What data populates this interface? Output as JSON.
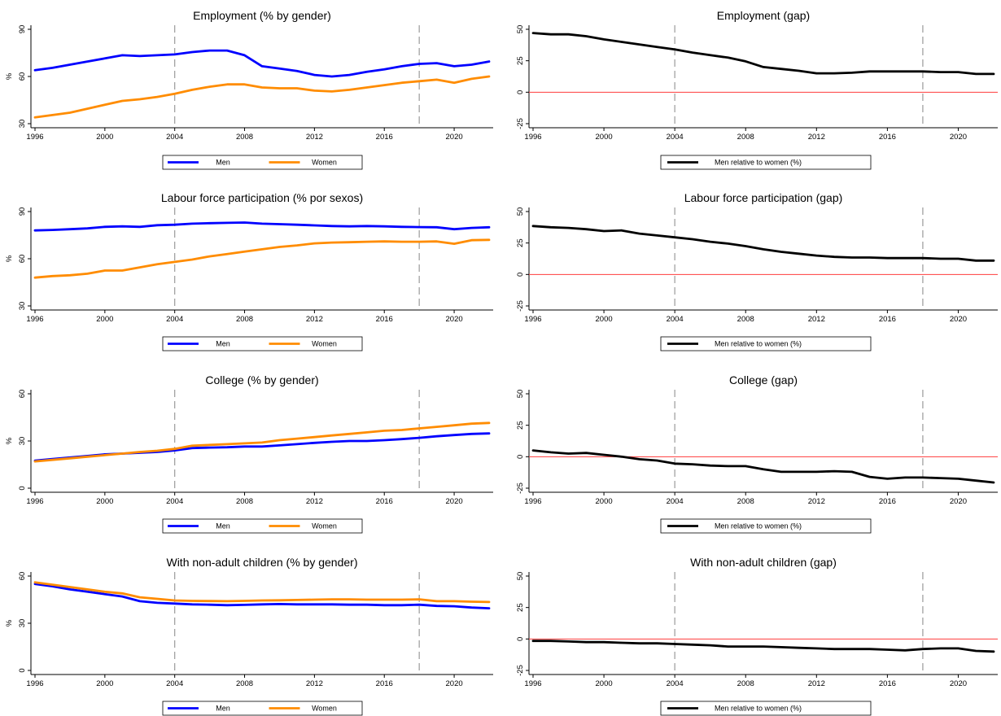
{
  "colors": {
    "men": "#0000ff",
    "women": "#ff8c00",
    "gap": "#000000",
    "zero_line": "#ff3b3b",
    "ref_line": "#9a9a9a",
    "axis": "#000000",
    "background": "#ffffff"
  },
  "chart_data": [
    {
      "type": "line",
      "title": "Employment (% by gender)",
      "ylabel": "%",
      "ylim": [
        30,
        90
      ],
      "yticks": [
        30,
        60,
        90
      ],
      "xlim": [
        1996,
        2022
      ],
      "xticks": [
        1996,
        2000,
        2004,
        2008,
        2012,
        2016,
        2020
      ],
      "vlines": [
        2004,
        2018
      ],
      "grid": false,
      "legend_position": "bottom",
      "x": [
        1996,
        1997,
        1998,
        1999,
        2000,
        2001,
        2002,
        2003,
        2004,
        2005,
        2006,
        2007,
        2008,
        2009,
        2010,
        2011,
        2012,
        2013,
        2014,
        2015,
        2016,
        2017,
        2018,
        2019,
        2020,
        2021,
        2022
      ],
      "series": [
        {
          "name": "Men",
          "color_key": "men",
          "values": [
            64,
            65.5,
            67.5,
            69.5,
            71.5,
            73.5,
            73,
            73.5,
            74,
            75.5,
            76.5,
            76.5,
            73.5,
            66.5,
            65,
            63.5,
            61,
            60,
            61,
            63,
            64.5,
            66.5,
            68,
            68.5,
            66.5,
            67.5,
            69.5
          ]
        },
        {
          "name": "Women",
          "color_key": "women",
          "values": [
            34,
            35.5,
            37,
            39.5,
            42,
            44.5,
            45.5,
            47,
            49,
            51.5,
            53.5,
            55,
            55,
            53,
            52.5,
            52.5,
            51,
            50.5,
            51.5,
            53,
            54.5,
            56,
            57,
            58,
            56,
            58.5,
            60
          ]
        }
      ]
    },
    {
      "type": "line",
      "title": "Employment (gap)",
      "ylabel": "",
      "ylim": [
        -25,
        50
      ],
      "yticks": [
        -25,
        0,
        25,
        50
      ],
      "xlim": [
        1996,
        2022
      ],
      "xticks": [
        1996,
        2000,
        2004,
        2008,
        2012,
        2016,
        2020
      ],
      "vlines": [
        2004,
        2018
      ],
      "hline": 0,
      "grid": false,
      "legend_position": "bottom",
      "x": [
        1996,
        1997,
        1998,
        1999,
        2000,
        2001,
        2002,
        2003,
        2004,
        2005,
        2006,
        2007,
        2008,
        2009,
        2010,
        2011,
        2012,
        2013,
        2014,
        2015,
        2016,
        2017,
        2018,
        2019,
        2020,
        2021,
        2022
      ],
      "series": [
        {
          "name": "Men relative to women (%)",
          "color_key": "gap",
          "values": [
            47,
            46,
            46,
            44.5,
            42,
            40,
            38,
            36,
            34,
            31.5,
            29.5,
            27.5,
            24.5,
            20,
            18.5,
            17,
            15,
            15,
            15.5,
            16.5,
            16.5,
            16.5,
            16.5,
            16,
            16,
            14.5,
            14.5
          ]
        }
      ]
    },
    {
      "type": "line",
      "title": "Labour force participation (% por sexos)",
      "ylabel": "%",
      "ylim": [
        30,
        90
      ],
      "yticks": [
        30,
        60,
        90
      ],
      "xlim": [
        1996,
        2022
      ],
      "xticks": [
        1996,
        2000,
        2004,
        2008,
        2012,
        2016,
        2020
      ],
      "vlines": [
        2004,
        2018
      ],
      "grid": false,
      "legend_position": "bottom",
      "x": [
        1996,
        1997,
        1998,
        1999,
        2000,
        2001,
        2002,
        2003,
        2004,
        2005,
        2006,
        2007,
        2008,
        2009,
        2010,
        2011,
        2012,
        2013,
        2014,
        2015,
        2016,
        2017,
        2018,
        2019,
        2020,
        2021,
        2022
      ],
      "series": [
        {
          "name": "Men",
          "color_key": "men",
          "values": [
            78,
            78.3,
            78.8,
            79.3,
            80.3,
            80.6,
            80.3,
            81.3,
            81.6,
            82.3,
            82.6,
            82.8,
            83,
            82.3,
            82,
            81.6,
            81.2,
            80.8,
            80.6,
            80.8,
            80.6,
            80.3,
            80.1,
            80,
            78.8,
            79.6,
            80
          ]
        },
        {
          "name": "Women",
          "color_key": "women",
          "values": [
            48,
            49,
            49.5,
            50.5,
            52.5,
            52.5,
            54.5,
            56.5,
            58,
            59.5,
            61.5,
            63,
            64.5,
            66,
            67.5,
            68.5,
            69.8,
            70.3,
            70.5,
            70.8,
            71,
            70.8,
            70.8,
            71,
            69.5,
            71.8,
            72
          ]
        }
      ]
    },
    {
      "type": "line",
      "title": "Labour force participation (gap)",
      "ylabel": "",
      "ylim": [
        -25,
        50
      ],
      "yticks": [
        -25,
        0,
        25,
        50
      ],
      "xlim": [
        1996,
        2022
      ],
      "xticks": [
        1996,
        2000,
        2004,
        2008,
        2012,
        2016,
        2020
      ],
      "vlines": [
        2004,
        2018
      ],
      "hline": 0,
      "grid": false,
      "legend_position": "bottom",
      "x": [
        1996,
        1997,
        1998,
        1999,
        2000,
        2001,
        2002,
        2003,
        2004,
        2005,
        2006,
        2007,
        2008,
        2009,
        2010,
        2011,
        2012,
        2013,
        2014,
        2015,
        2016,
        2017,
        2018,
        2019,
        2020,
        2021,
        2022
      ],
      "series": [
        {
          "name": "Men relative to women (%)",
          "color_key": "gap",
          "values": [
            38.5,
            37.5,
            37,
            36,
            34.5,
            35,
            32.5,
            31,
            29.5,
            28,
            26,
            24.5,
            22.5,
            20,
            18,
            16.5,
            15,
            14,
            13.5,
            13.5,
            13,
            13,
            13,
            12.5,
            12.5,
            11,
            11
          ]
        }
      ]
    },
    {
      "type": "line",
      "title": "College (% by gender)",
      "ylabel": "%",
      "ylim": [
        0,
        60
      ],
      "yticks": [
        0,
        30,
        60
      ],
      "xlim": [
        1996,
        2022
      ],
      "xticks": [
        1996,
        2000,
        2004,
        2008,
        2012,
        2016,
        2020
      ],
      "vlines": [
        2004,
        2018
      ],
      "grid": false,
      "legend_position": "bottom",
      "x": [
        1996,
        1997,
        1998,
        1999,
        2000,
        2001,
        2002,
        2003,
        2004,
        2005,
        2006,
        2007,
        2008,
        2009,
        2010,
        2011,
        2012,
        2013,
        2014,
        2015,
        2016,
        2017,
        2018,
        2019,
        2020,
        2021,
        2022
      ],
      "series": [
        {
          "name": "Men",
          "color_key": "men",
          "values": [
            17.5,
            18.5,
            19.5,
            20.5,
            21.5,
            22,
            22.5,
            23,
            24,
            25.5,
            25.8,
            26,
            26.5,
            26.5,
            27.2,
            28,
            28.8,
            29.5,
            30,
            30,
            30.5,
            31.2,
            32,
            33,
            33.8,
            34.5,
            34.8
          ]
        },
        {
          "name": "Women",
          "color_key": "women",
          "values": [
            17,
            18,
            19,
            20,
            21,
            22,
            23,
            23.8,
            25,
            27,
            27.5,
            28,
            28.5,
            29,
            30.5,
            31.5,
            32.5,
            33.5,
            34.5,
            35.5,
            36.5,
            37,
            38,
            39,
            40,
            41,
            41.5
          ]
        }
      ]
    },
    {
      "type": "line",
      "title": "College (gap)",
      "ylabel": "",
      "ylim": [
        -25,
        50
      ],
      "yticks": [
        -25,
        0,
        25,
        50
      ],
      "xlim": [
        1996,
        2022
      ],
      "xticks": [
        1996,
        2000,
        2004,
        2008,
        2012,
        2016,
        2020
      ],
      "vlines": [
        2004,
        2018
      ],
      "hline": 0,
      "grid": false,
      "legend_position": "bottom",
      "x": [
        1996,
        1997,
        1998,
        1999,
        2000,
        2001,
        2002,
        2003,
        2004,
        2005,
        2006,
        2007,
        2008,
        2009,
        2010,
        2011,
        2012,
        2013,
        2014,
        2015,
        2016,
        2017,
        2018,
        2019,
        2020,
        2021,
        2022
      ],
      "series": [
        {
          "name": "Men relative to women (%)",
          "color_key": "gap",
          "values": [
            5,
            3.5,
            2.5,
            3,
            1.5,
            0,
            -2,
            -3,
            -5.5,
            -6,
            -7,
            -7.5,
            -7.5,
            -10,
            -12,
            -12,
            -12,
            -11.5,
            -12,
            -16,
            -17.5,
            -16.5,
            -16.5,
            -17,
            -17.5,
            -19,
            -20.5
          ]
        }
      ]
    },
    {
      "type": "line",
      "title": "With non-adult children (% by gender)",
      "ylabel": "%",
      "ylim": [
        0,
        60
      ],
      "yticks": [
        0,
        30,
        60
      ],
      "xlim": [
        1996,
        2022
      ],
      "xticks": [
        1996,
        2000,
        2004,
        2008,
        2012,
        2016,
        2020
      ],
      "vlines": [
        2004,
        2018
      ],
      "grid": false,
      "legend_position": "bottom",
      "x": [
        1996,
        1997,
        1998,
        1999,
        2000,
        2001,
        2002,
        2003,
        2004,
        2005,
        2006,
        2007,
        2008,
        2009,
        2010,
        2011,
        2012,
        2013,
        2014,
        2015,
        2016,
        2017,
        2018,
        2019,
        2020,
        2021,
        2022
      ],
      "series": [
        {
          "name": "Men",
          "color_key": "men",
          "values": [
            55,
            53.5,
            51.5,
            50,
            48.5,
            47,
            44,
            43,
            42.5,
            42,
            41.8,
            41.5,
            41.7,
            42,
            42.2,
            42,
            42,
            42,
            41.8,
            41.8,
            41.5,
            41.5,
            41.8,
            41,
            40.8,
            40,
            39.5
          ]
        },
        {
          "name": "Women",
          "color_key": "women",
          "values": [
            56,
            54.5,
            53,
            51.5,
            50,
            49,
            46.5,
            45.5,
            44.5,
            44.2,
            44.1,
            44,
            44.2,
            44.5,
            44.6,
            44.8,
            45,
            45.2,
            45.2,
            45,
            45,
            45,
            45.2,
            44,
            44,
            43.7,
            43.5
          ]
        }
      ]
    },
    {
      "type": "line",
      "title": "With non-adult children (gap)",
      "ylabel": "",
      "ylim": [
        -25,
        50
      ],
      "yticks": [
        -25,
        0,
        25,
        50
      ],
      "xlim": [
        1996,
        2022
      ],
      "xticks": [
        1996,
        2000,
        2004,
        2008,
        2012,
        2016,
        2020
      ],
      "vlines": [
        2004,
        2018
      ],
      "hline": 0,
      "grid": false,
      "legend_position": "bottom",
      "x": [
        1996,
        1997,
        1998,
        1999,
        2000,
        2001,
        2002,
        2003,
        2004,
        2005,
        2006,
        2007,
        2008,
        2009,
        2010,
        2011,
        2012,
        2013,
        2014,
        2015,
        2016,
        2017,
        2018,
        2019,
        2020,
        2021,
        2022
      ],
      "series": [
        {
          "name": "Men relative to women (%)",
          "color_key": "gap",
          "values": [
            -1.5,
            -1.5,
            -2,
            -2.5,
            -2.5,
            -3,
            -3.5,
            -3.5,
            -4,
            -4.5,
            -5,
            -6,
            -6,
            -6,
            -6.5,
            -7,
            -7.5,
            -8,
            -8,
            -8,
            -8.5,
            -9,
            -8,
            -7.5,
            -7.5,
            -9.5,
            -10
          ]
        }
      ]
    }
  ]
}
